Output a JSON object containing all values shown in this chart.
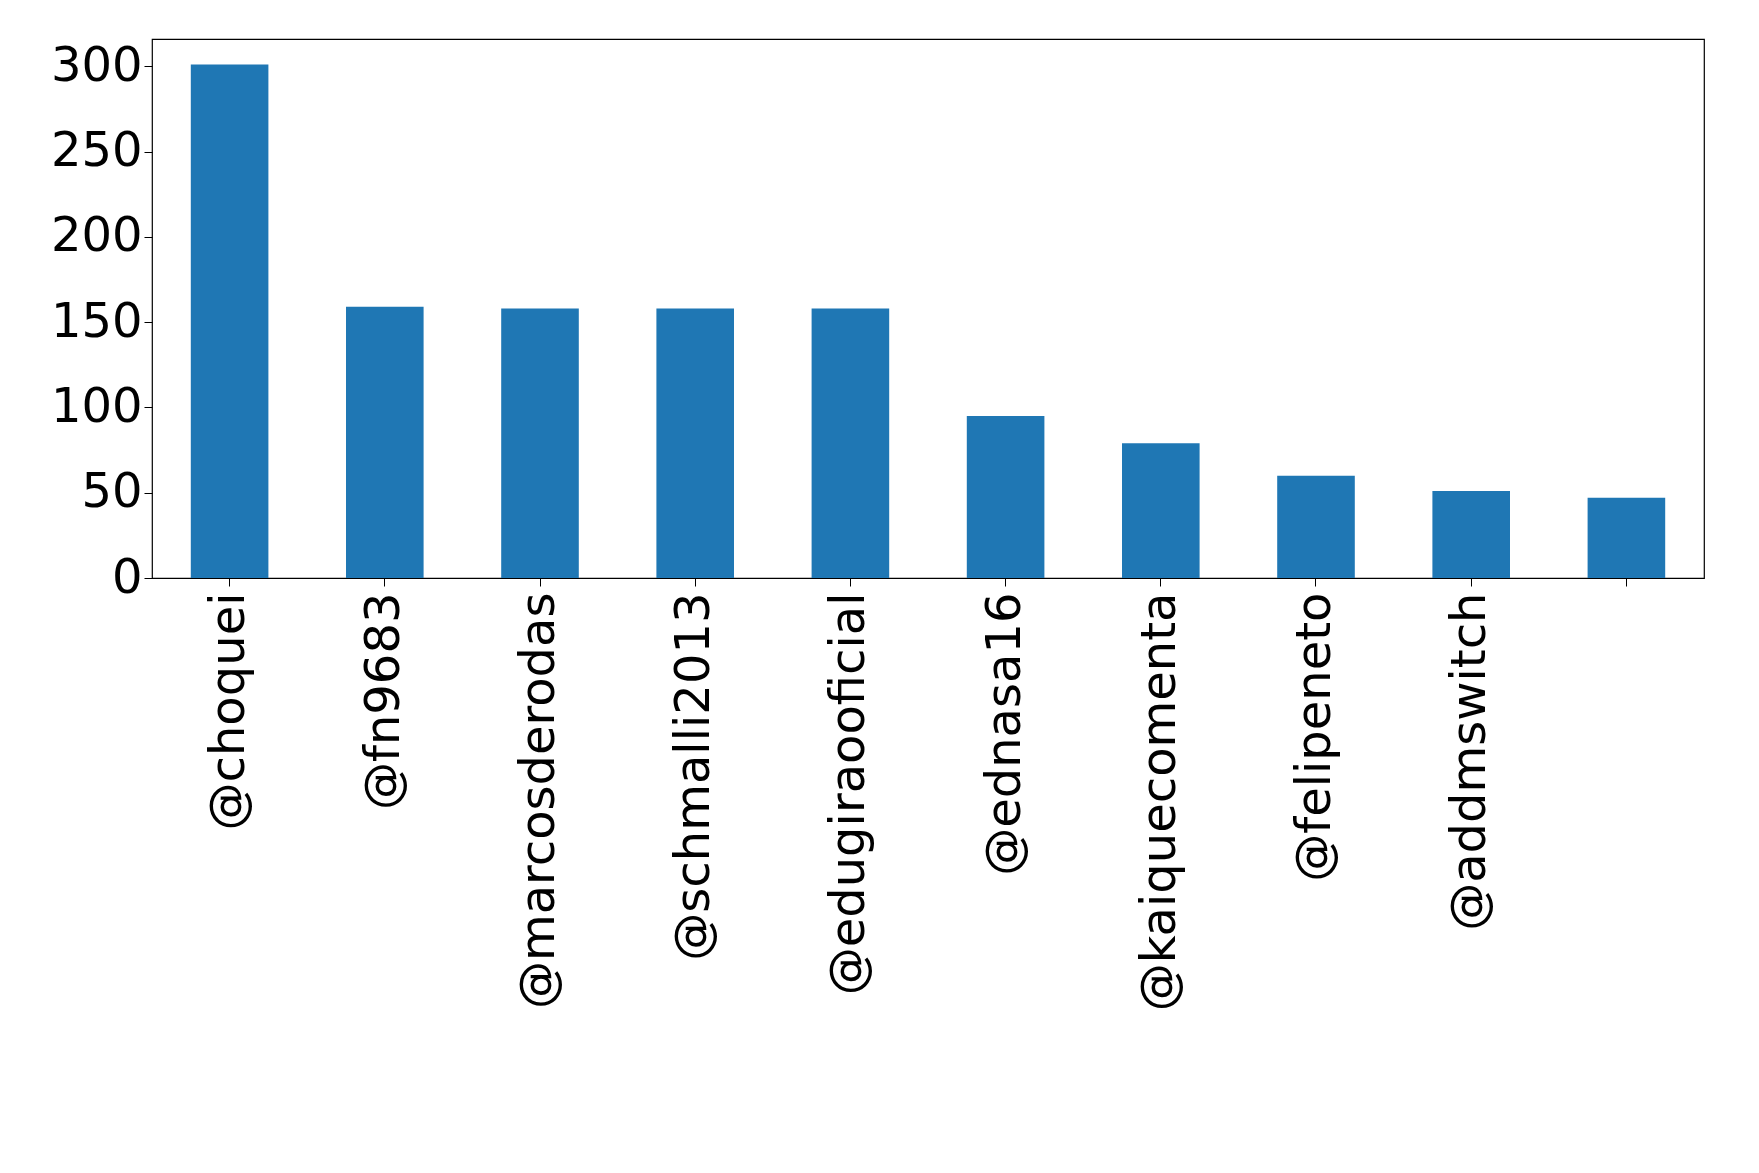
{
  "chart_data": {
    "type": "bar",
    "categories": [
      "@choquei",
      "@fn9683",
      "@marcosderodas",
      "@schmalli2013",
      "@edugiraooficial",
      "@ednasa16",
      "@kaiquecomenta",
      "@felipeneto",
      "@addmswitch",
      null
    ],
    "values": [
      301,
      159,
      158,
      158,
      158,
      95,
      79,
      60,
      51,
      47
    ],
    "color": "#1f77b4",
    "ylim": [
      0,
      316
    ],
    "yticks": [
      0,
      50,
      100,
      150,
      200,
      250,
      300
    ],
    "grid": false
  }
}
